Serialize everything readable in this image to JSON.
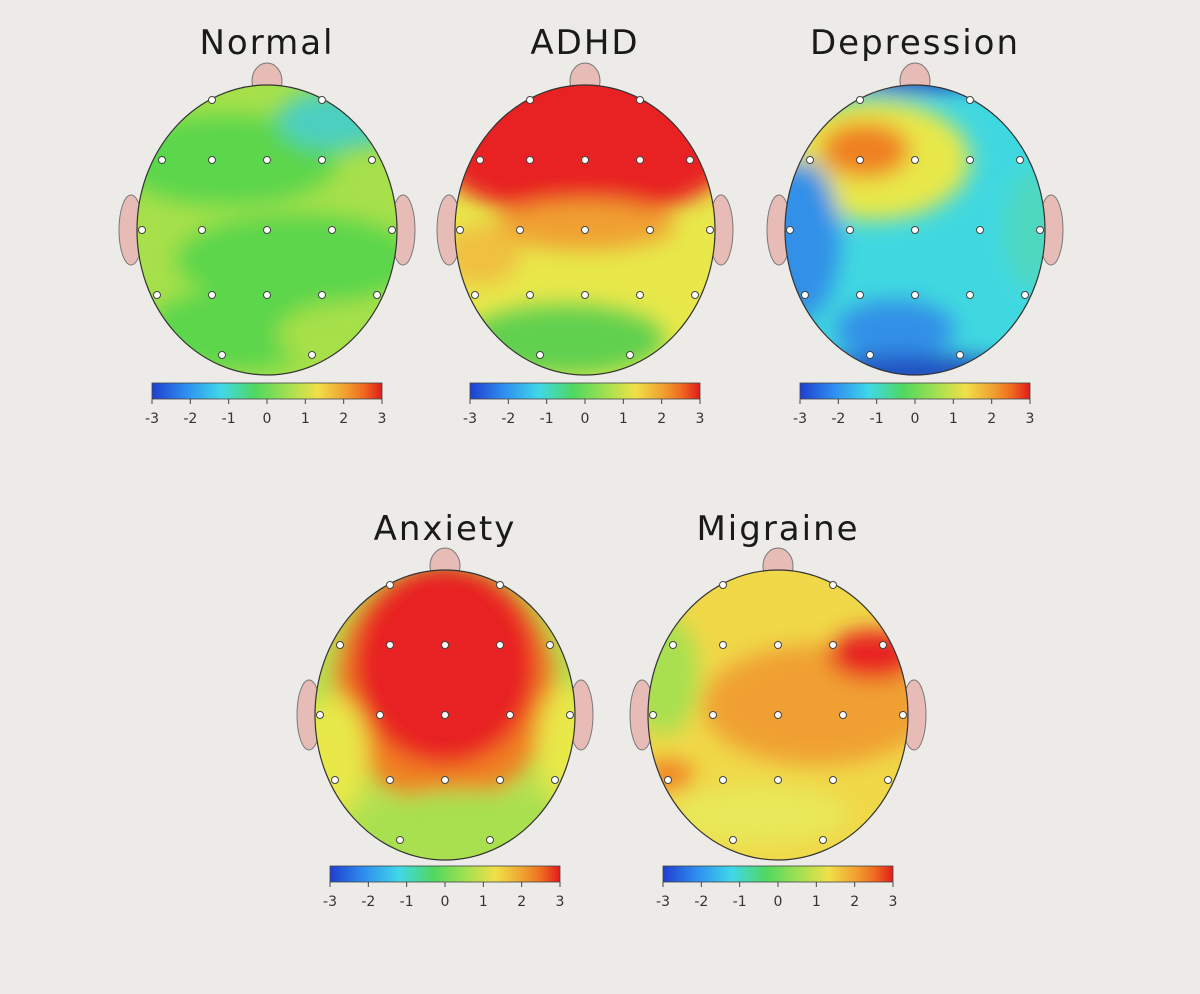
{
  "maps": [
    {
      "title": "Normal",
      "colorbar_ticks": [
        -3,
        -2,
        -1,
        0,
        1,
        2,
        3
      ]
    },
    {
      "title": "ADHD",
      "colorbar_ticks": [
        -3,
        -2,
        -1,
        0,
        1,
        2,
        3
      ]
    },
    {
      "title": "Depression",
      "colorbar_ticks": [
        -3,
        -2,
        -1,
        0,
        1,
        2,
        3
      ]
    },
    {
      "title": "Anxiety",
      "colorbar_ticks": [
        -3,
        -2,
        -1,
        0,
        1,
        2,
        3
      ]
    },
    {
      "title": "Migraine",
      "colorbar_ticks": [
        -3,
        -2,
        -1,
        0,
        1,
        2,
        3
      ]
    }
  ]
}
